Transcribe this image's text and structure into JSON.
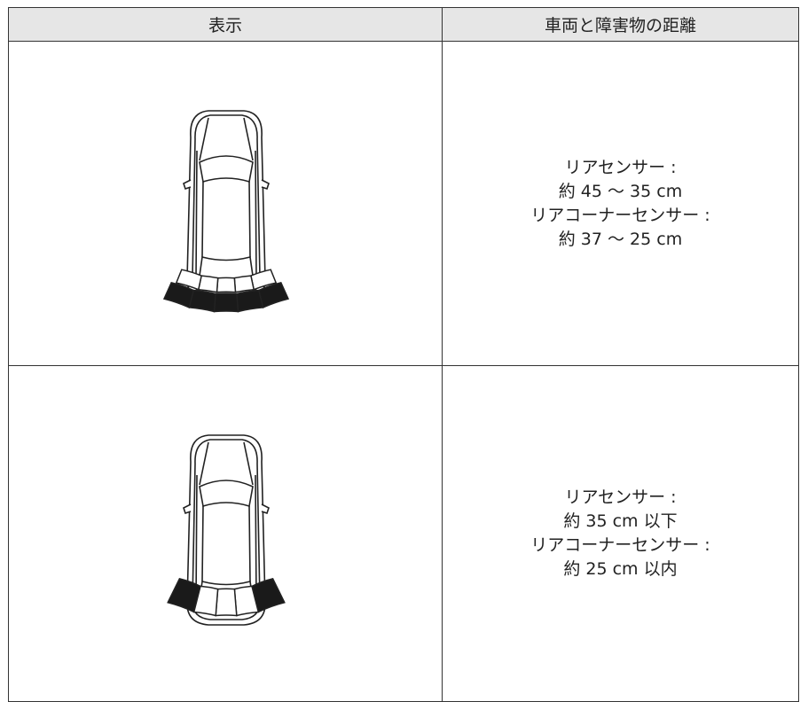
{
  "table": {
    "header": [
      "表示",
      "車両と障害物の距離"
    ],
    "rows": [
      {
        "lines": [
          "リアセンサー :",
          "約 45 ～ 35 cm",
          "リアコーナーセンサー :",
          "約 37 ～ 25 cm"
        ]
      },
      {
        "lines": [
          "リアセンサー :",
          "約 35 cm 以下",
          "リアコーナーセンサー :",
          "約 25 cm 以内"
        ]
      }
    ]
  }
}
